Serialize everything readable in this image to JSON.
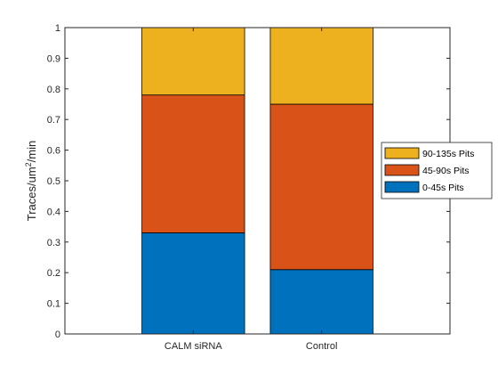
{
  "chart_data": {
    "type": "bar",
    "stacked": true,
    "categories": [
      "CALM siRNA",
      "Control"
    ],
    "series": [
      {
        "name": "0-45s Pits",
        "values": [
          0.33,
          0.21
        ],
        "color": "#0072BD"
      },
      {
        "name": "45-90s Pits",
        "values": [
          0.45,
          0.54
        ],
        "color": "#D95319"
      },
      {
        "name": "90-135s Pits",
        "values": [
          0.22,
          0.25
        ],
        "color": "#EDB120"
      }
    ],
    "title": "",
    "xlabel": "",
    "ylabel_main": "Traces/um",
    "ylabel_sup": "2",
    "ylabel_tail": "/min",
    "ylim": [
      0,
      1
    ],
    "yticks": [
      "0",
      "0.1",
      "0.2",
      "0.3",
      "0.4",
      "0.5",
      "0.6",
      "0.7",
      "0.8",
      "0.9",
      "1"
    ],
    "legend_order": [
      2,
      1,
      0
    ],
    "legend_position": "right",
    "grid": false
  }
}
